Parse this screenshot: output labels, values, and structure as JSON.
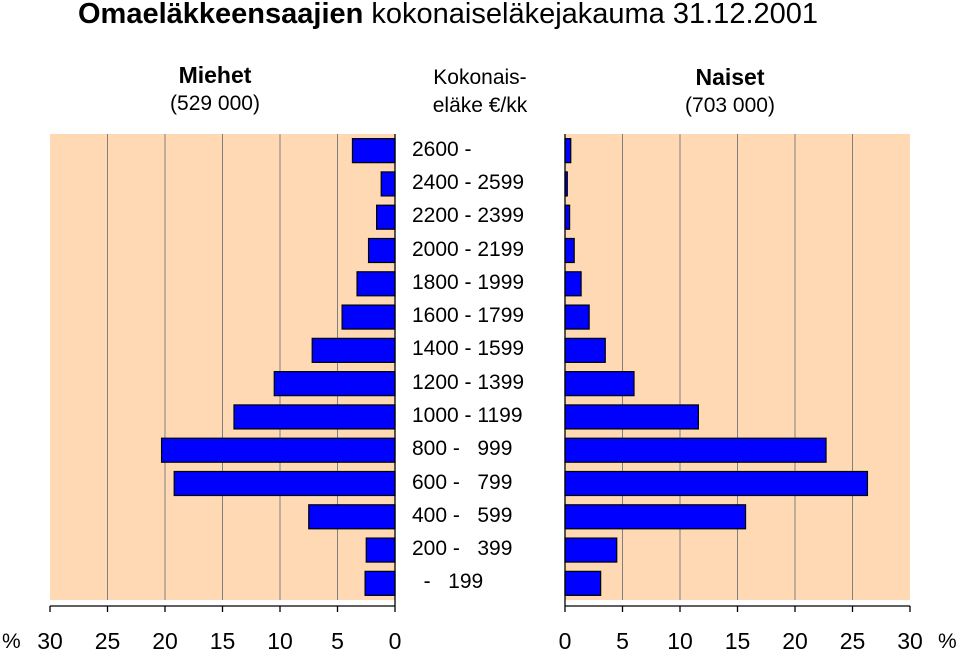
{
  "title_bold": "Omaeläkkeensaajien",
  "title_rest": " kokonaiseläkejakauma 31.12.2001",
  "left_header": {
    "title": "Miehet",
    "subtitle": "(529 000)"
  },
  "right_header": {
    "title": "Naiset",
    "subtitle": "(703 000)"
  },
  "center_header": {
    "line1": "Kokonais-",
    "line2": "eläke €/kk"
  },
  "percent_sign": "%",
  "colors": {
    "panel": "#FFD9B3",
    "bar": "#0000FF",
    "grid": "#808080"
  },
  "chart_data": {
    "type": "bar",
    "orientation": "horizontal-population-pyramid",
    "categories": [
      "2600 -",
      "2400 - 2599",
      "2200 - 2399",
      "2000 - 2199",
      "1800 - 1999",
      "1600 - 1799",
      "1400 - 1599",
      "1200 - 1399",
      "1000 - 1199",
      "800 -   999",
      "600 -   799",
      "400 -   599",
      "200 -   399",
      "  -   199"
    ],
    "series": [
      {
        "name": "Miehet",
        "values": [
          3.7,
          1.2,
          1.6,
          2.3,
          3.3,
          4.6,
          7.2,
          10.5,
          14.0,
          20.3,
          19.2,
          7.5,
          2.5,
          2.6
        ]
      },
      {
        "name": "Naiset",
        "values": [
          0.5,
          0.2,
          0.4,
          0.8,
          1.4,
          2.1,
          3.5,
          6.0,
          11.6,
          22.7,
          26.3,
          15.7,
          4.5,
          3.1
        ]
      }
    ],
    "xlim": [
      0,
      30
    ],
    "xticks": [
      "0",
      "5",
      "10",
      "15",
      "20",
      "25",
      "30"
    ],
    "xticks_left": [
      "30",
      "25",
      "20",
      "15",
      "10",
      "5",
      "0"
    ],
    "grid": true
  }
}
